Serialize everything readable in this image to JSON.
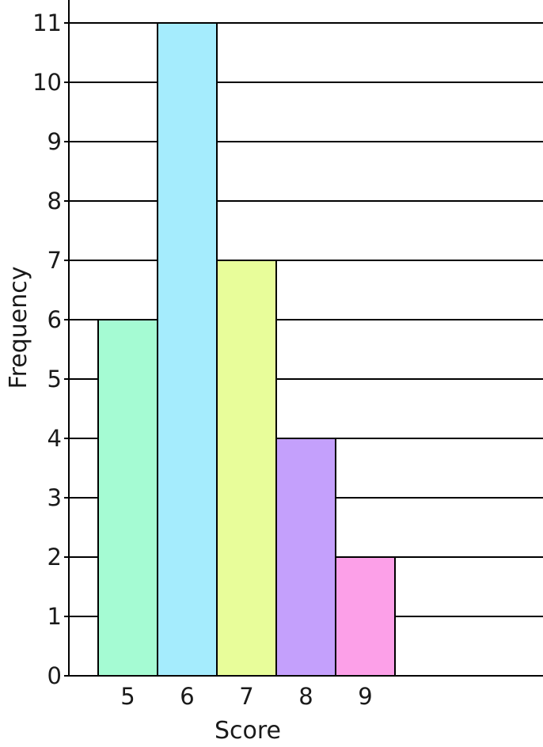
{
  "chart_data": {
    "type": "bar",
    "title": "",
    "xlabel": "Score",
    "ylabel": "Frequency",
    "categories": [
      "5",
      "6",
      "7",
      "8",
      "9"
    ],
    "values": [
      6,
      11,
      7,
      4,
      2
    ],
    "colors": [
      "#a5fbd3",
      "#a5ecfd",
      "#e8fd9a",
      "#c4a0fc",
      "#fca0e8"
    ],
    "ylim": [
      0,
      11
    ],
    "yticks": [
      "0",
      "1",
      "2",
      "3",
      "4",
      "5",
      "6",
      "7",
      "8",
      "9",
      "10",
      "11"
    ],
    "grid": true,
    "legend": "none"
  }
}
